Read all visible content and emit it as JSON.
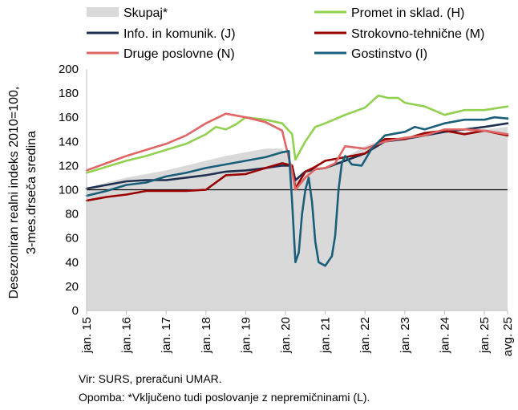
{
  "chart_data": {
    "type": "line",
    "ylabel": "Desezoniran realni indeks 2010=100, 3-mes.drseča sredina",
    "ylabel_lines": [
      "Desezoniran realni indeks 2010=100,",
      "3-mes.drseča sredina"
    ],
    "ylim": [
      0,
      200
    ],
    "yticks": [
      0,
      20,
      40,
      60,
      80,
      100,
      120,
      140,
      160,
      180,
      200
    ],
    "reference_line": 100,
    "x_range": [
      "2015-01",
      "2025-08"
    ],
    "x_ticks": [
      {
        "date": "2015-01",
        "label": "jan. 15"
      },
      {
        "date": "2016-01",
        "label": "jan. 16"
      },
      {
        "date": "2017-01",
        "label": "jan. 17"
      },
      {
        "date": "2018-01",
        "label": "jan. 18"
      },
      {
        "date": "2019-01",
        "label": "jan. 19"
      },
      {
        "date": "2020-01",
        "label": "jan. 20"
      },
      {
        "date": "2021-01",
        "label": "jan. 21"
      },
      {
        "date": "2022-01",
        "label": "jan. 22"
      },
      {
        "date": "2023-01",
        "label": "jan. 23"
      },
      {
        "date": "2024-01",
        "label": "jan. 24"
      },
      {
        "date": "2025-01",
        "label": "jan. 25"
      },
      {
        "date": "2025-08",
        "label": "avg. 25"
      }
    ],
    "legend_position": "top",
    "series": [
      {
        "name": "Skupaj*",
        "kind": "area",
        "color": "#d9d9d9",
        "points": [
          [
            "2015-01",
            101
          ],
          [
            "2015-07",
            106
          ],
          [
            "2016-01",
            110
          ],
          [
            "2016-07",
            113
          ],
          [
            "2017-01",
            116
          ],
          [
            "2017-07",
            120
          ],
          [
            "2018-01",
            124
          ],
          [
            "2018-07",
            128
          ],
          [
            "2019-01",
            131
          ],
          [
            "2019-07",
            134
          ],
          [
            "2019-12",
            134
          ],
          [
            "2020-03",
            122
          ],
          [
            "2020-04",
            108
          ],
          [
            "2020-06",
            115
          ],
          [
            "2020-10",
            119
          ],
          [
            "2021-01",
            118
          ],
          [
            "2021-04",
            122
          ],
          [
            "2021-07",
            127
          ],
          [
            "2022-01",
            136
          ],
          [
            "2022-07",
            142
          ],
          [
            "2023-01",
            144
          ],
          [
            "2023-07",
            146
          ],
          [
            "2024-01",
            148
          ],
          [
            "2024-07",
            148
          ],
          [
            "2025-01",
            150
          ],
          [
            "2025-08",
            152
          ]
        ]
      },
      {
        "name": "Promet in sklad. (H)",
        "kind": "line",
        "color": "#92d050",
        "points": [
          [
            "2015-01",
            114
          ],
          [
            "2015-07",
            119
          ],
          [
            "2016-01",
            124
          ],
          [
            "2016-07",
            128
          ],
          [
            "2017-01",
            133
          ],
          [
            "2017-07",
            138
          ],
          [
            "2018-01",
            146
          ],
          [
            "2018-04",
            152
          ],
          [
            "2018-07",
            150
          ],
          [
            "2018-10",
            154
          ],
          [
            "2019-01",
            160
          ],
          [
            "2019-07",
            158
          ],
          [
            "2019-12",
            155
          ],
          [
            "2020-03",
            146
          ],
          [
            "2020-04",
            125
          ],
          [
            "2020-07",
            140
          ],
          [
            "2020-10",
            152
          ],
          [
            "2021-01",
            155
          ],
          [
            "2021-07",
            162
          ],
          [
            "2022-01",
            168
          ],
          [
            "2022-05",
            178
          ],
          [
            "2022-08",
            176
          ],
          [
            "2022-11",
            176
          ],
          [
            "2023-01",
            172
          ],
          [
            "2023-07",
            169
          ],
          [
            "2024-01",
            162
          ],
          [
            "2024-07",
            166
          ],
          [
            "2025-01",
            166
          ],
          [
            "2025-08",
            169
          ]
        ]
      },
      {
        "name": "Info. in komunik. (J)",
        "kind": "line",
        "color": "#203050",
        "points": [
          [
            "2015-01",
            101
          ],
          [
            "2015-07",
            104
          ],
          [
            "2016-01",
            107
          ],
          [
            "2016-07",
            108
          ],
          [
            "2017-01",
            108
          ],
          [
            "2017-07",
            110
          ],
          [
            "2018-01",
            112
          ],
          [
            "2018-07",
            115
          ],
          [
            "2019-01",
            116
          ],
          [
            "2019-07",
            118
          ],
          [
            "2019-12",
            120
          ],
          [
            "2020-03",
            120
          ],
          [
            "2020-04",
            108
          ],
          [
            "2020-07",
            115
          ],
          [
            "2020-10",
            117
          ],
          [
            "2021-01",
            118
          ],
          [
            "2021-04",
            121
          ],
          [
            "2021-07",
            124
          ],
          [
            "2022-01",
            130
          ],
          [
            "2022-07",
            140
          ],
          [
            "2023-01",
            142
          ],
          [
            "2023-07",
            145
          ],
          [
            "2024-01",
            148
          ],
          [
            "2024-07",
            150
          ],
          [
            "2025-01",
            152
          ],
          [
            "2025-08",
            155
          ]
        ]
      },
      {
        "name": "Strokovno-tehnične (M)",
        "kind": "line",
        "color": "#990000",
        "points": [
          [
            "2015-01",
            91
          ],
          [
            "2015-07",
            94
          ],
          [
            "2016-01",
            96
          ],
          [
            "2016-07",
            99
          ],
          [
            "2017-01",
            99
          ],
          [
            "2017-07",
            99
          ],
          [
            "2018-01",
            100
          ],
          [
            "2018-07",
            112
          ],
          [
            "2019-01",
            113
          ],
          [
            "2019-07",
            118
          ],
          [
            "2019-12",
            122
          ],
          [
            "2020-03",
            120
          ],
          [
            "2020-04",
            101
          ],
          [
            "2020-07",
            115
          ],
          [
            "2020-10",
            119
          ],
          [
            "2021-01",
            124
          ],
          [
            "2021-07",
            127
          ],
          [
            "2022-01",
            130
          ],
          [
            "2022-07",
            142
          ],
          [
            "2023-01",
            142
          ],
          [
            "2023-07",
            147
          ],
          [
            "2024-01",
            149
          ],
          [
            "2024-07",
            146
          ],
          [
            "2025-01",
            149
          ],
          [
            "2025-08",
            145
          ]
        ]
      },
      {
        "name": "Druge poslovne (N)",
        "kind": "line",
        "color": "#e06666",
        "points": [
          [
            "2015-01",
            116
          ],
          [
            "2015-07",
            122
          ],
          [
            "2016-01",
            128
          ],
          [
            "2016-07",
            133
          ],
          [
            "2017-01",
            138
          ],
          [
            "2017-07",
            145
          ],
          [
            "2018-01",
            155
          ],
          [
            "2018-07",
            163
          ],
          [
            "2019-01",
            160
          ],
          [
            "2019-07",
            156
          ],
          [
            "2019-12",
            149
          ],
          [
            "2020-03",
            115
          ],
          [
            "2020-04",
            100
          ],
          [
            "2020-07",
            110
          ],
          [
            "2020-10",
            117
          ],
          [
            "2021-01",
            118
          ],
          [
            "2021-04",
            122
          ],
          [
            "2021-07",
            136
          ],
          [
            "2022-01",
            134
          ],
          [
            "2022-07",
            140
          ],
          [
            "2023-01",
            143
          ],
          [
            "2023-07",
            145
          ],
          [
            "2024-01",
            150
          ],
          [
            "2024-07",
            150
          ],
          [
            "2025-01",
            149
          ],
          [
            "2025-08",
            146
          ]
        ]
      },
      {
        "name": "Gostinstvo (I)",
        "kind": "line",
        "color": "#1a5f7a",
        "points": [
          [
            "2015-01",
            95
          ],
          [
            "2015-07",
            99
          ],
          [
            "2016-01",
            104
          ],
          [
            "2016-07",
            106
          ],
          [
            "2017-01",
            111
          ],
          [
            "2017-07",
            114
          ],
          [
            "2018-01",
            118
          ],
          [
            "2018-07",
            121
          ],
          [
            "2019-01",
            124
          ],
          [
            "2019-07",
            127
          ],
          [
            "2019-12",
            131
          ],
          [
            "2020-02",
            132
          ],
          [
            "2020-03",
            90
          ],
          [
            "2020-04",
            40
          ],
          [
            "2020-05",
            48
          ],
          [
            "2020-06",
            80
          ],
          [
            "2020-07",
            100
          ],
          [
            "2020-08",
            110
          ],
          [
            "2020-09",
            90
          ],
          [
            "2020-10",
            57
          ],
          [
            "2020-11",
            40
          ],
          [
            "2021-01",
            37
          ],
          [
            "2021-03",
            45
          ],
          [
            "2021-04",
            62
          ],
          [
            "2021-05",
            100
          ],
          [
            "2021-06",
            122
          ],
          [
            "2021-07",
            128
          ],
          [
            "2021-09",
            121
          ],
          [
            "2021-12",
            120
          ],
          [
            "2022-03",
            134
          ],
          [
            "2022-07",
            145
          ],
          [
            "2023-01",
            148
          ],
          [
            "2023-04",
            152
          ],
          [
            "2023-07",
            150
          ],
          [
            "2024-01",
            155
          ],
          [
            "2024-07",
            158
          ],
          [
            "2025-01",
            158
          ],
          [
            "2025-04",
            160
          ],
          [
            "2025-08",
            159
          ]
        ]
      }
    ]
  },
  "notes": {
    "source": "Vir: SURS, preračuni UMAR.",
    "remark": "Opomba: *Vključeno tudi poslovanje z nepremičninami (L)."
  }
}
